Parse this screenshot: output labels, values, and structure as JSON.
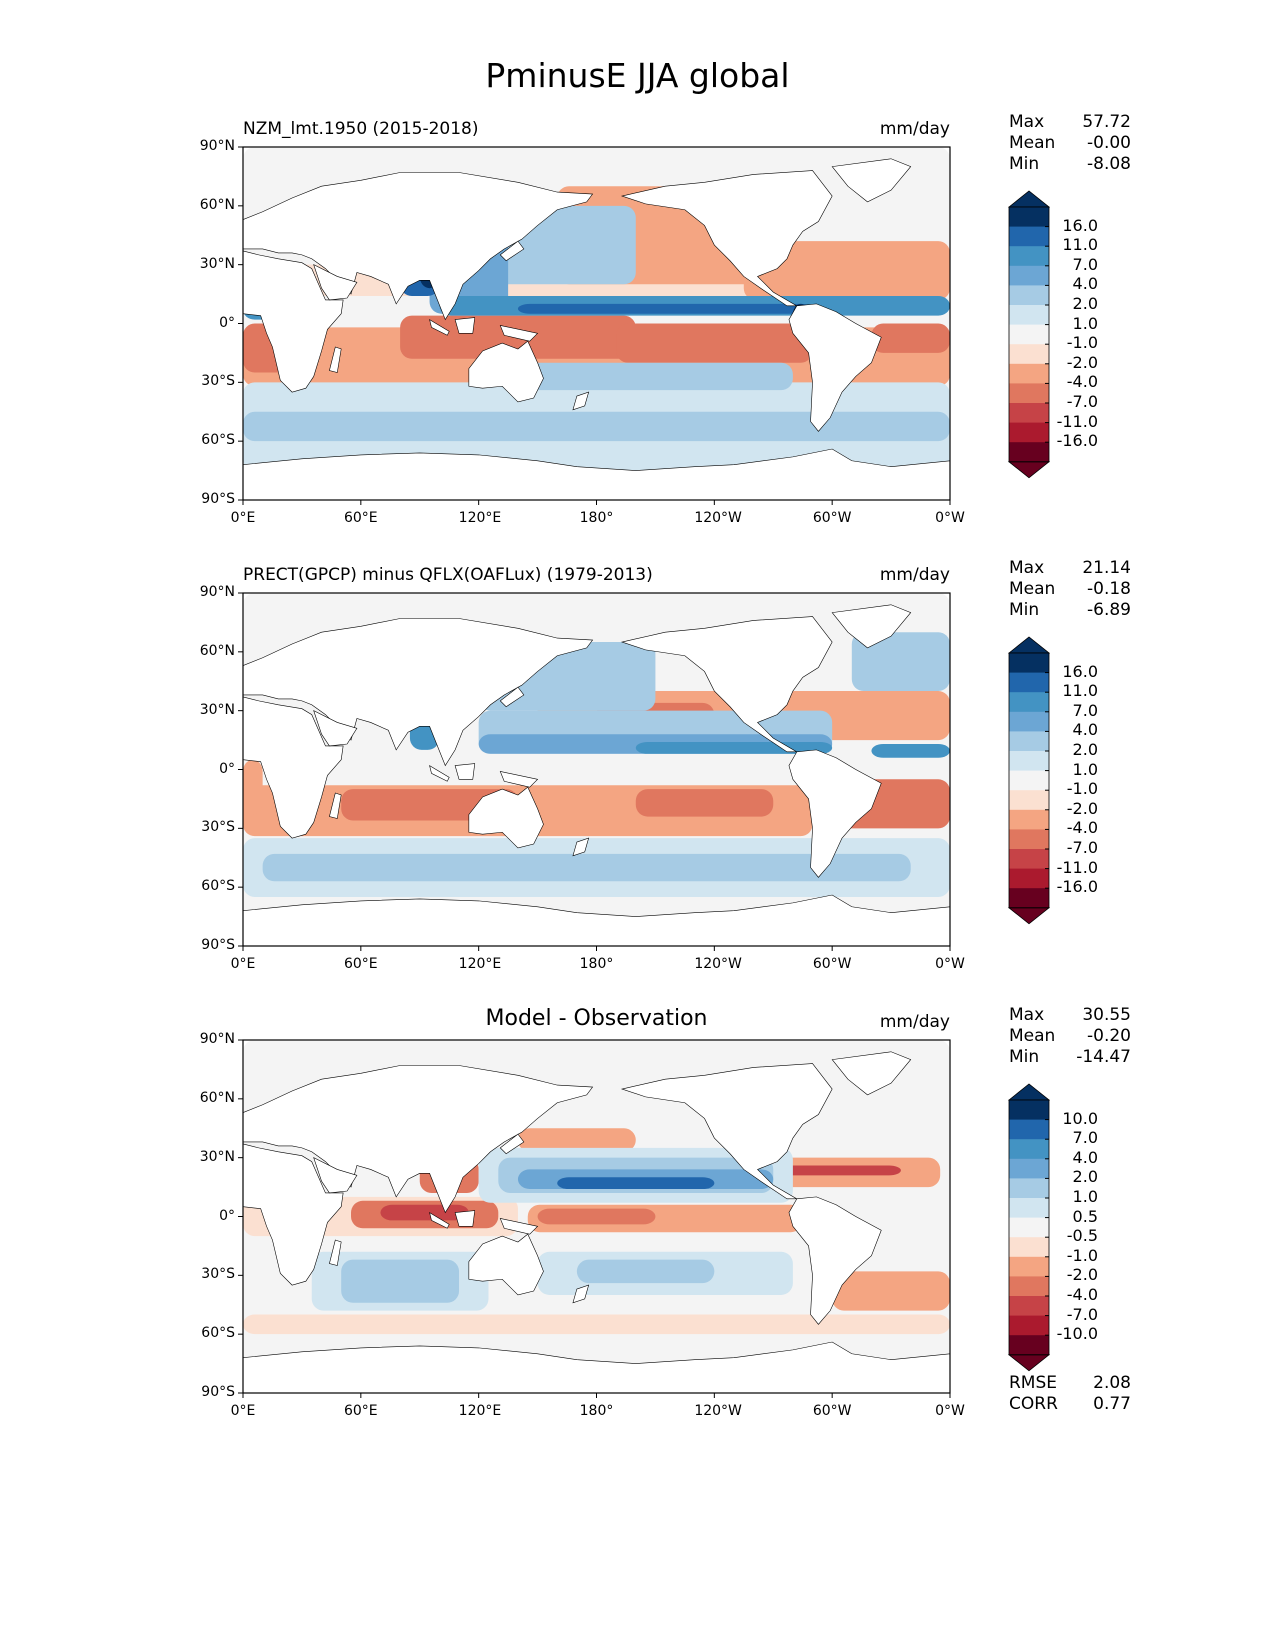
{
  "figure": {
    "title": "PminusE JJA global"
  },
  "x_ticks": [
    "0°E",
    "60°E",
    "120°E",
    "180°",
    "120°W",
    "60°W",
    "0°W"
  ],
  "y_ticks": [
    "90°N",
    "60°N",
    "30°N",
    "0°",
    "30°S",
    "60°S",
    "90°S"
  ],
  "panels": [
    {
      "id": "model",
      "title": "NZM_lmt.1950 (2015-2018)",
      "title_style": "left",
      "units": "mm/day",
      "stats": [
        {
          "label": "Max",
          "value": "57.72"
        },
        {
          "label": "Mean",
          "value": "-0.00"
        },
        {
          "label": "Min",
          "value": "-8.08"
        }
      ],
      "colorbar_levels": [
        "16.0",
        "11.0",
        "7.0",
        "4.0",
        "2.0",
        "1.0",
        "-1.0",
        "-2.0",
        "-4.0",
        "-7.0",
        "-11.0",
        "-16.0"
      ]
    },
    {
      "id": "observation",
      "title": "PRECT(GPCP) minus QFLX(OAFLux) (1979-2013)",
      "title_style": "left",
      "units": "mm/day",
      "stats": [
        {
          "label": "Max",
          "value": "21.14"
        },
        {
          "label": "Mean",
          "value": "-0.18"
        },
        {
          "label": "Min",
          "value": "-6.89"
        }
      ],
      "colorbar_levels": [
        "16.0",
        "11.0",
        "7.0",
        "4.0",
        "2.0",
        "1.0",
        "-1.0",
        "-2.0",
        "-4.0",
        "-7.0",
        "-11.0",
        "-16.0"
      ]
    },
    {
      "id": "difference",
      "title": "Model - Observation",
      "title_style": "center",
      "units": "mm/day",
      "stats": [
        {
          "label": "Max",
          "value": "30.55"
        },
        {
          "label": "Mean",
          "value": "-0.20"
        },
        {
          "label": "Min",
          "value": "-14.47"
        }
      ],
      "colorbar_levels": [
        "10.0",
        "7.0",
        "4.0",
        "2.0",
        "1.0",
        "0.5",
        "-0.5",
        "-1.0",
        "-2.0",
        "-4.0",
        "-7.0",
        "-10.0"
      ],
      "metrics": [
        {
          "label": "RMSE",
          "value": "2.08"
        },
        {
          "label": "CORR",
          "value": "0.77"
        }
      ]
    }
  ],
  "colors": {
    "blues": [
      "#053061",
      "#2166ac",
      "#4393c3",
      "#6ca6d4",
      "#a6cbe4",
      "#d1e5f0",
      "#f4f4f4"
    ],
    "reds": [
      "#fbe0d1",
      "#f4a582",
      "#e0775f",
      "#c64347",
      "#ab1a2e",
      "#67001f"
    ],
    "land": "#ffffff",
    "ocean_neutral": "#f4f4f4"
  }
}
